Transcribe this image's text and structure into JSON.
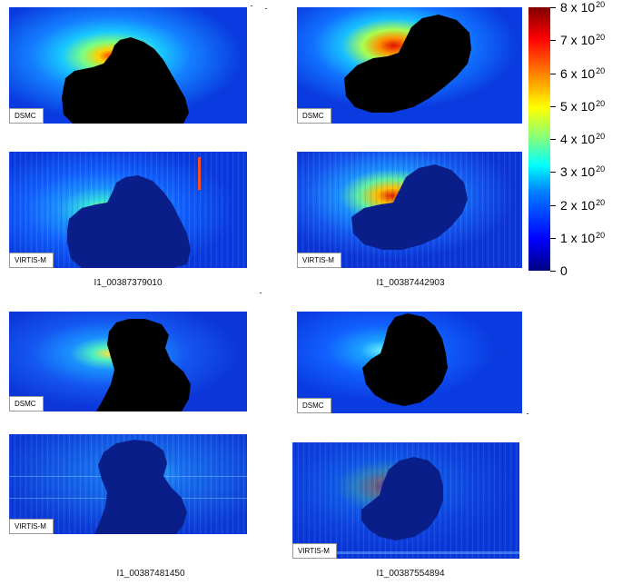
{
  "colorbar": {
    "ticks": [
      {
        "label": "8 x 10",
        "exp": "20"
      },
      {
        "label": "7 x 10",
        "exp": "20"
      },
      {
        "label": "6 x 10",
        "exp": "20"
      },
      {
        "label": "5 x 10",
        "exp": "20"
      },
      {
        "label": "4 x 10",
        "exp": "20"
      },
      {
        "label": "3 x 10",
        "exp": "20"
      },
      {
        "label": "2 x 10",
        "exp": "20"
      },
      {
        "label": "1 x 10",
        "exp": "20"
      },
      {
        "label": "0",
        "exp": ""
      }
    ]
  },
  "panels": {
    "p1": {
      "tag": "DSMC"
    },
    "p2": {
      "tag": "DSMC"
    },
    "p3": {
      "tag": "VIRTIS-M"
    },
    "p4": {
      "tag": "VIRTIS-M"
    },
    "p5": {
      "tag": "DSMC"
    },
    "p6": {
      "tag": "DSMC"
    },
    "p7": {
      "tag": "VIRTIS-M"
    },
    "p8": {
      "tag": "VIRTIS-M"
    }
  },
  "captions": {
    "c1": "I1_00387379010",
    "c2": "I1_00387442903",
    "c3": "I1_00387481450",
    "c4": "I1_00387554894"
  }
}
